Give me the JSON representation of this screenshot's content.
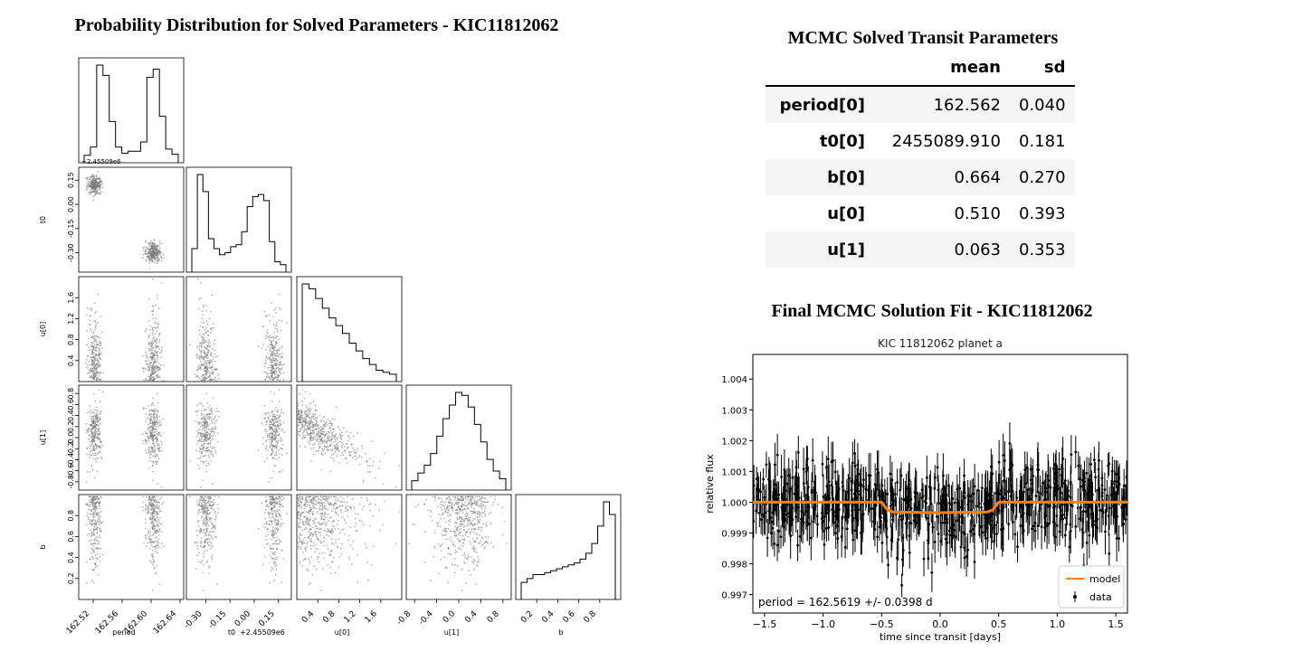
{
  "corner_title": "Probability Distribution for Solved Parameters - KIC11812062",
  "table_title": "MCMC Solved Transit Parameters",
  "fit_title": "Final MCMC Solution Fit - KIC11812062",
  "table": {
    "columns": [
      "mean",
      "sd"
    ],
    "rows": [
      {
        "name": "period[0]",
        "mean": "162.562",
        "sd": "0.040"
      },
      {
        "name": "t0[0]",
        "mean": "2455089.910",
        "sd": "0.181"
      },
      {
        "name": "b[0]",
        "mean": "0.664",
        "sd": "0.270"
      },
      {
        "name": "u[0]",
        "mean": "0.510",
        "sd": "0.393"
      },
      {
        "name": "u[1]",
        "mean": "0.063",
        "sd": "0.353"
      }
    ]
  },
  "chart_data": [
    {
      "type": "scatter",
      "subtype": "corner-plot",
      "title": "Probability Distribution for Solved Parameters - KIC11812062",
      "parameters": [
        "period",
        "t0",
        "u[0]",
        "u[1]",
        "b"
      ],
      "axis_labels": {
        "x": [
          "period",
          "t0",
          "u[0]",
          "u[1]",
          "b"
        ],
        "y": [
          "t0",
          "u[0]",
          "u[1]",
          "b"
        ]
      },
      "offset_labels": {
        "t0_x": "+2.45509e6",
        "t0_y": "+2.45509e6"
      },
      "ticks": {
        "period": {
          "labels": [
            "162.52",
            "162.56",
            "162.60",
            "162.64"
          ],
          "values": [
            162.52,
            162.56,
            162.6,
            162.64
          ]
        },
        "t0": {
          "labels": [
            "-0.30",
            "-0.15",
            "0.00",
            "0.15"
          ],
          "values": [
            -0.3,
            -0.15,
            0.0,
            0.15
          ]
        },
        "u0": {
          "labels": [
            "0.4",
            "0.8",
            "1.2",
            "1.6"
          ],
          "values": [
            0.4,
            0.8,
            1.2,
            1.6
          ]
        },
        "u1": {
          "labels": [
            "-0.8",
            "-0.4",
            "0.0",
            "0.4",
            "0.8"
          ],
          "values": [
            -0.8,
            -0.4,
            0.0,
            0.4,
            0.8
          ]
        },
        "b": {
          "labels": [
            "0.2",
            "0.4",
            "0.6",
            "0.8"
          ],
          "values": [
            0.2,
            0.4,
            0.6,
            0.8
          ]
        },
        "t0_y": {
          "labels": [
            "0.15",
            "0.00",
            "-0.15",
            "-0.30"
          ],
          "values": [
            0.15,
            0.0,
            -0.15,
            -0.3
          ]
        },
        "u0_y": {
          "labels": [
            "1.6",
            "1.2",
            "0.8",
            "0.4"
          ],
          "values": [
            1.6,
            1.2,
            0.8,
            0.4
          ]
        },
        "u1_y": {
          "labels": [
            "0.8",
            "0.6",
            "0.4",
            "0.2",
            "0.0",
            "-0.2",
            "-0.4",
            "-0.6",
            "-0.8"
          ],
          "values": [
            0.8,
            0.6,
            0.4,
            0.2,
            0.0,
            -0.2,
            -0.4,
            -0.6,
            -0.8
          ]
        },
        "b_y": {
          "labels": [
            "0.8",
            "0.6",
            "0.4",
            "0.2"
          ],
          "values": [
            0.8,
            0.6,
            0.4,
            0.2
          ]
        }
      },
      "ranges": {
        "period": [
          162.5,
          162.645
        ],
        "t0": [
          -0.42,
          0.23
        ],
        "u0": [
          0.0,
          2.0
        ],
        "u1": [
          -0.95,
          0.95
        ],
        "b": [
          0.0,
          1.0
        ]
      },
      "histograms": {
        "period": [
          2,
          10,
          90,
          80,
          35,
          10,
          4,
          6,
          6,
          15,
          78,
          86,
          40,
          8,
          3
        ],
        "t0": [
          18,
          92,
          75,
          28,
          18,
          12,
          14,
          20,
          22,
          35,
          60,
          70,
          72,
          66,
          25,
          5,
          2
        ],
        "u0": [
          95,
          90,
          80,
          70,
          60,
          52,
          44,
          34,
          26,
          18,
          12,
          6,
          4,
          2
        ],
        "u1": [
          4,
          12,
          20,
          32,
          50,
          68,
          82,
          95,
          92,
          80,
          62,
          44,
          26,
          14,
          6
        ],
        "b": [
          12,
          16,
          20,
          20,
          22,
          24,
          26,
          28,
          30,
          32,
          36,
          42,
          52,
          70,
          95,
          82
        ]
      }
    },
    {
      "type": "scatter",
      "title": "KIC 11812062 planet a",
      "xlabel": "time since transit [days]",
      "ylabel": "relative flux",
      "xlim": [
        -1.6,
        1.6
      ],
      "ylim": [
        0.9964,
        1.0048
      ],
      "xticks": [
        -1.5,
        -1.0,
        -0.5,
        0.0,
        0.5,
        1.0,
        1.5
      ],
      "xtick_labels": [
        "−1.5",
        "−1.0",
        "−0.5",
        "0.0",
        "0.5",
        "1.0",
        "1.5"
      ],
      "yticks": [
        0.997,
        0.998,
        0.999,
        1.0,
        1.001,
        1.002,
        1.003,
        1.004
      ],
      "ytick_labels": [
        "0.997",
        "0.998",
        "0.999",
        "1.000",
        "1.001",
        "1.002",
        "1.003",
        "1.004"
      ],
      "annotation": "period = 162.5619 +/- 0.0398 d",
      "legend": {
        "placement": "lower-right",
        "entries": [
          "model",
          "data"
        ]
      },
      "series": [
        {
          "name": "model",
          "color": "#ff7f0e",
          "model": {
            "x": [
              -1.6,
              -0.5,
              -0.45,
              -0.4,
              0.0,
              0.4,
              0.45,
              0.5,
              1.6
            ],
            "y": [
              1.0,
              1.0,
              0.99975,
              0.99968,
              0.99966,
              0.99968,
              0.99975,
              1.0,
              1.0
            ]
          }
        },
        {
          "name": "data",
          "color": "#000000"
        }
      ]
    }
  ]
}
